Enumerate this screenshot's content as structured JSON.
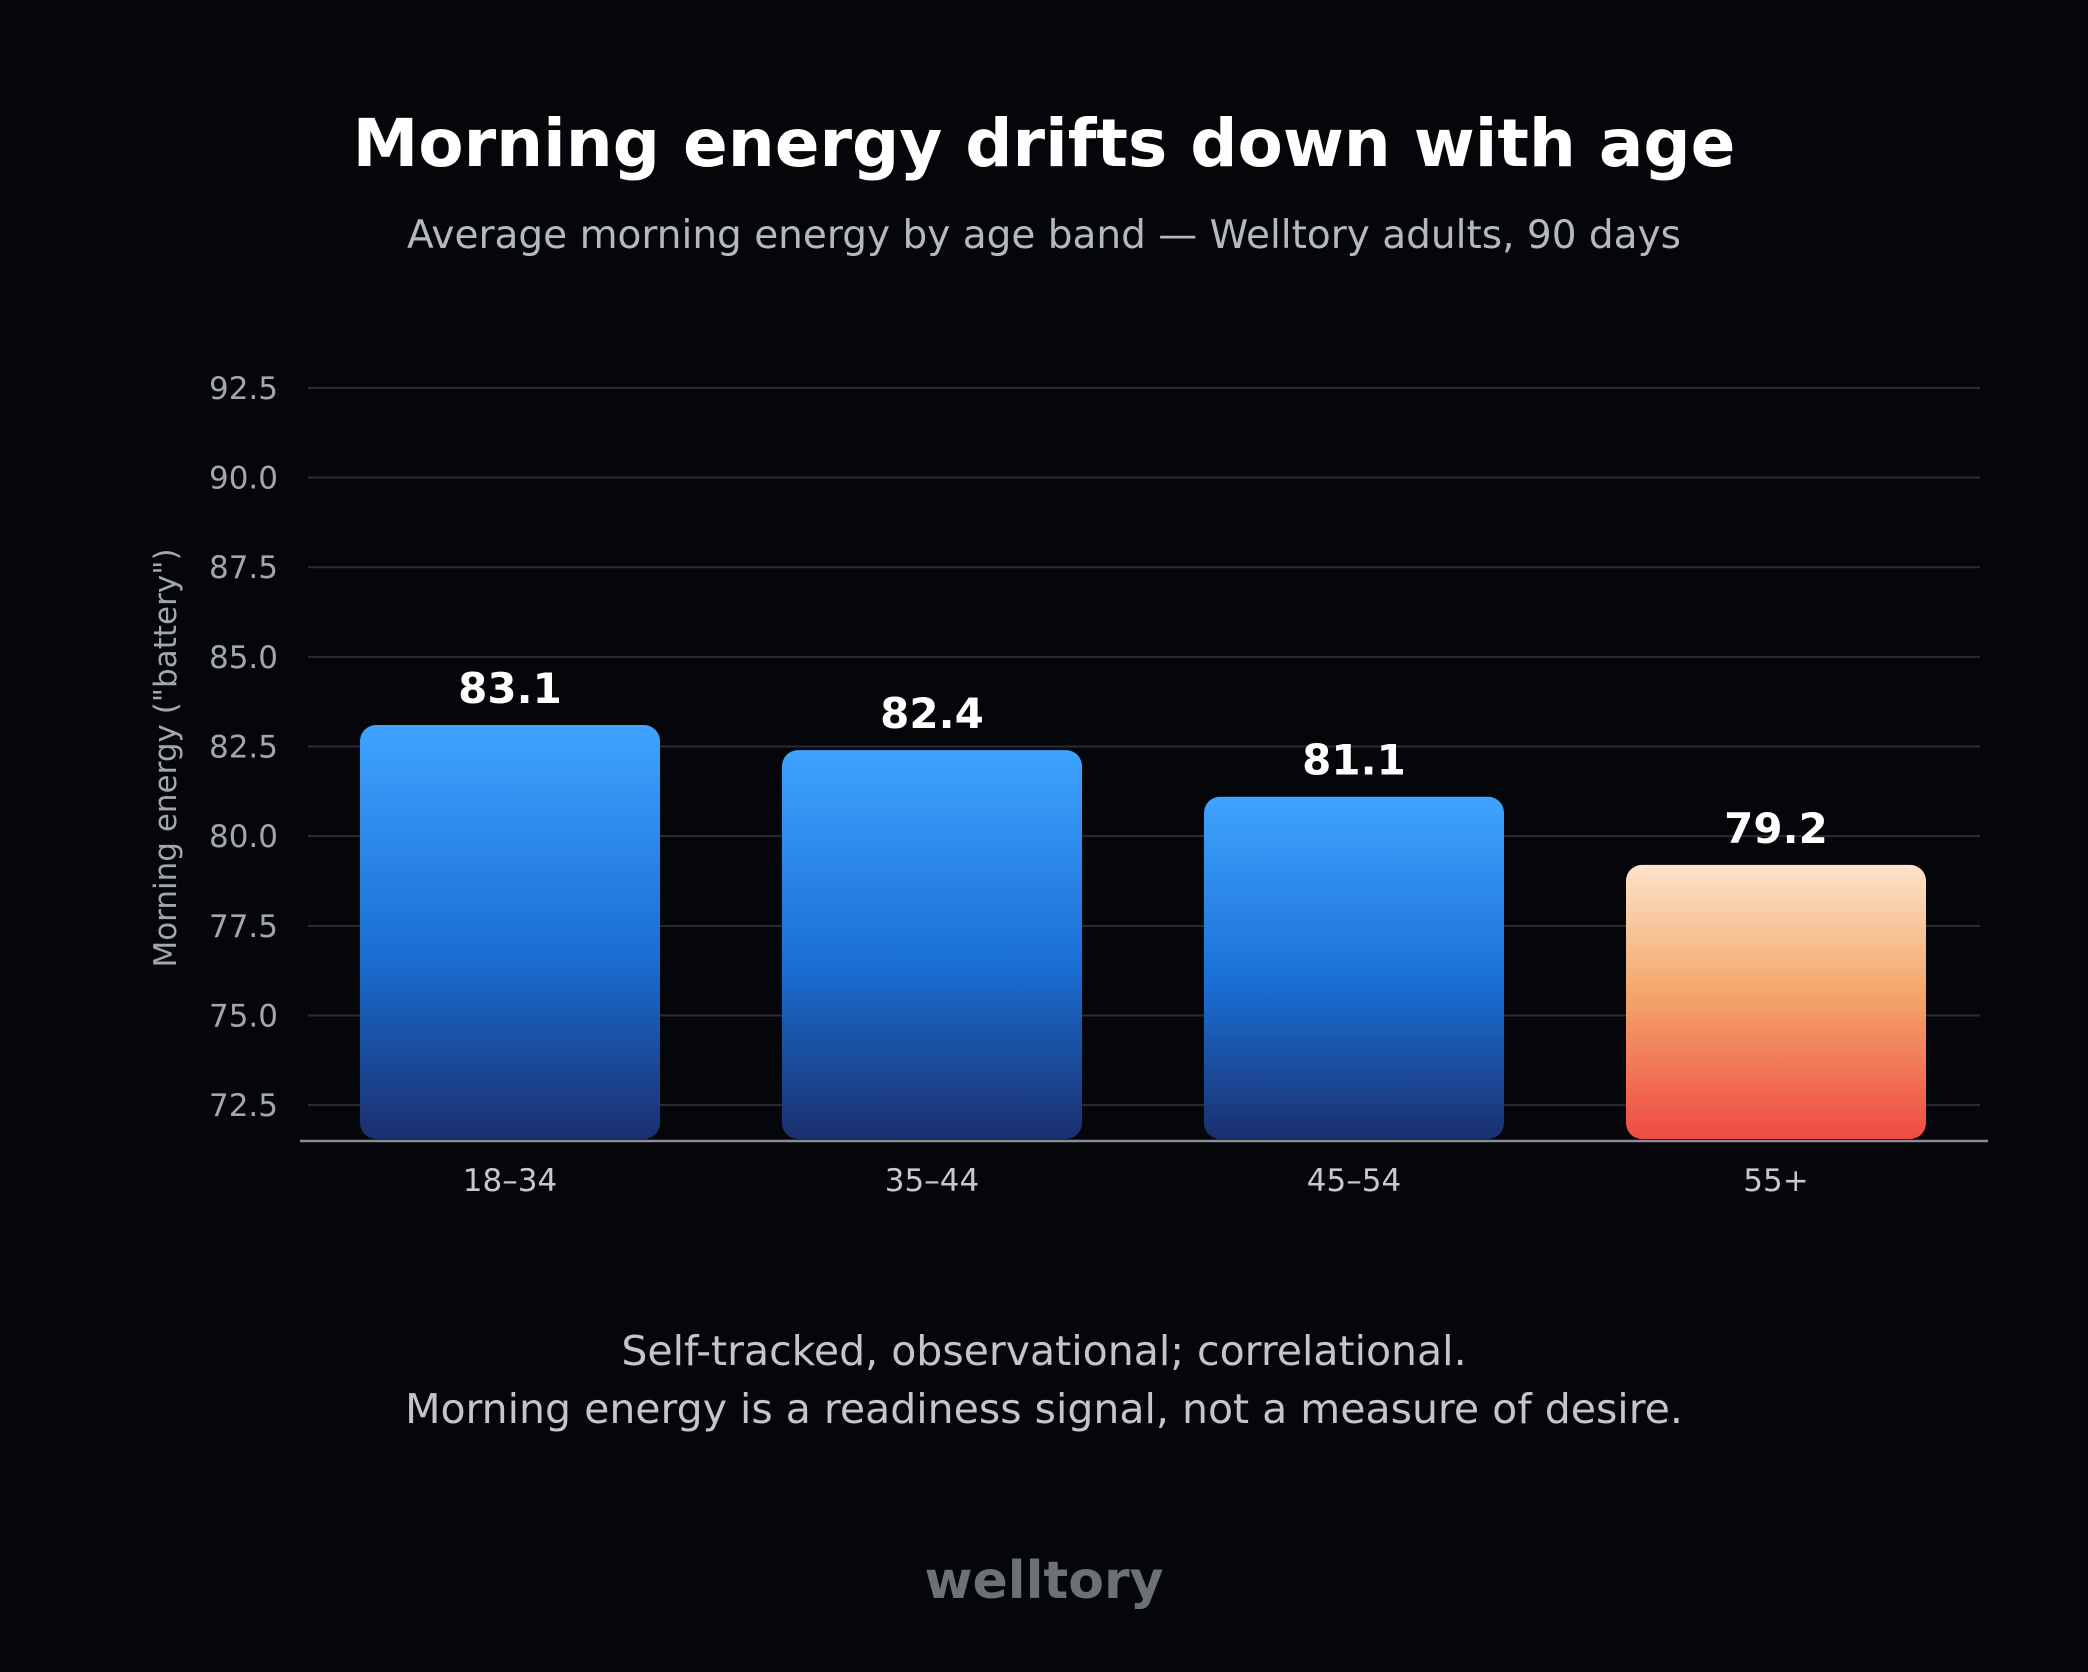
{
  "header": {
    "title": "Morning energy drifts down with age",
    "subtitle": "Average morning energy by age band — Welltory adults, 90 days"
  },
  "notes": [
    "Self-tracked, observational; correlational.",
    "Morning energy is a readiness signal, not a measure of desire."
  ],
  "brand": {
    "logo_text": "welltory"
  },
  "colors": {
    "background": "#05060a",
    "bar_blue_top": "#3fa3ff",
    "bar_blue_mid": "#1a6fd4",
    "bar_blue_bottom": "#1b2f6e",
    "bar_highlight_top": "#fde3cb",
    "bar_highlight_mid": "#f4a96c",
    "bar_highlight_bottom": "#ef4a44"
  },
  "chart_data": {
    "type": "bar",
    "title": "Morning energy drifts down with age",
    "subtitle": "Average morning energy by age band — Welltory adults, 90 days",
    "xlabel": "",
    "ylabel": "Morning energy (\"battery\")",
    "categories": [
      "18–34",
      "35–44",
      "45–54",
      "55+"
    ],
    "values": [
      83.1,
      82.4,
      81.1,
      79.2
    ],
    "value_labels": [
      "83.1",
      "82.4",
      "81.1",
      "79.2"
    ],
    "highlighted_category": "55+",
    "ylim": [
      71.5,
      93.0
    ],
    "yticks": [
      "72.5",
      "75.0",
      "77.5",
      "80.0",
      "82.5",
      "85.0",
      "87.5",
      "90.0",
      "92.5"
    ],
    "grid": true,
    "legend": "none"
  }
}
